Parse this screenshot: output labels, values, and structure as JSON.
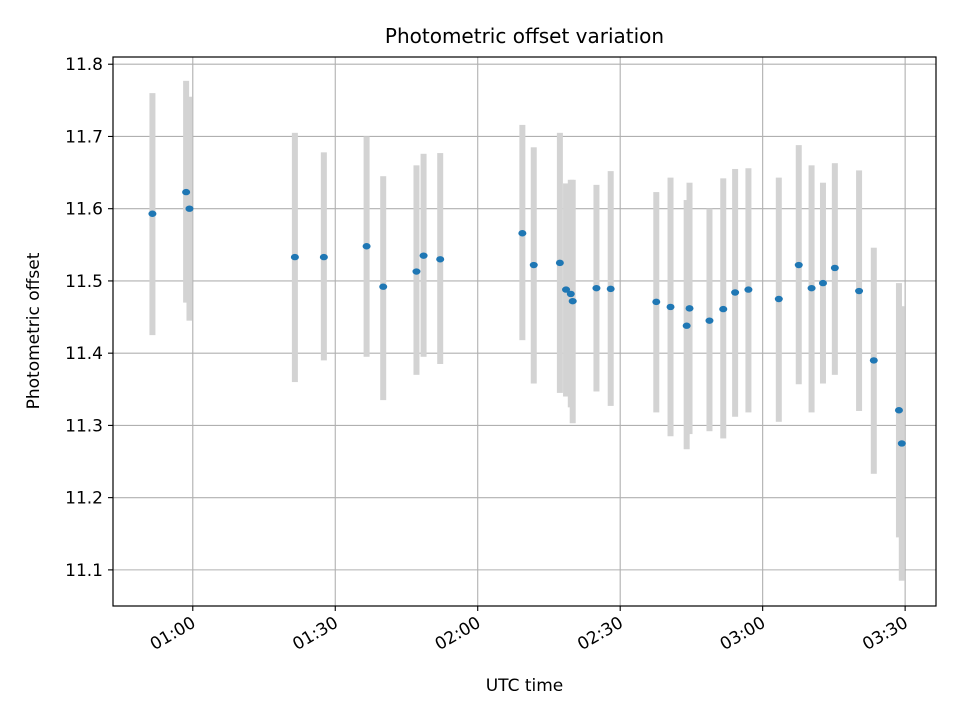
{
  "chart_data": {
    "type": "scatter",
    "title": "Photometric offset variation",
    "xlabel": "UTC time",
    "ylabel": "Photometric offset",
    "x_ticks": [
      "01:00",
      "01:30",
      "02:00",
      "02:30",
      "03:00",
      "03:30"
    ],
    "x_tick_minutes": [
      60,
      90,
      120,
      150,
      180,
      210
    ],
    "xlim_minutes": [
      43.2,
      216.5
    ],
    "ylim": [
      11.05,
      11.81
    ],
    "y_ticks": [
      11.1,
      11.2,
      11.3,
      11.4,
      11.5,
      11.6,
      11.7,
      11.8
    ],
    "grid": true,
    "colors": {
      "points": "#1f77b4",
      "error_bars": "#d3d3d3",
      "grid": "#b0b0b0"
    },
    "x_unit_note": "minutes after 00:00 UTC",
    "series": [
      {
        "points": [
          {
            "x": 51.5,
            "y": 11.593,
            "ylo": 11.425,
            "yhi": 11.76
          },
          {
            "x": 58.6,
            "y": 11.623,
            "ylo": 11.47,
            "yhi": 11.777
          },
          {
            "x": 59.3,
            "y": 11.6,
            "ylo": 11.445,
            "yhi": 11.755
          },
          {
            "x": 81.5,
            "y": 11.533,
            "ylo": 11.36,
            "yhi": 11.705
          },
          {
            "x": 87.6,
            "y": 11.533,
            "ylo": 11.39,
            "yhi": 11.678
          },
          {
            "x": 96.6,
            "y": 11.548,
            "ylo": 11.395,
            "yhi": 11.7
          },
          {
            "x": 100.1,
            "y": 11.492,
            "ylo": 11.335,
            "yhi": 11.645
          },
          {
            "x": 107.1,
            "y": 11.513,
            "ylo": 11.37,
            "yhi": 11.66
          },
          {
            "x": 108.6,
            "y": 11.535,
            "ylo": 11.395,
            "yhi": 11.676
          },
          {
            "x": 112.1,
            "y": 11.53,
            "ylo": 11.385,
            "yhi": 11.677
          },
          {
            "x": 129.4,
            "y": 11.566,
            "ylo": 11.418,
            "yhi": 11.716
          },
          {
            "x": 131.8,
            "y": 11.522,
            "ylo": 11.358,
            "yhi": 11.685
          },
          {
            "x": 137.3,
            "y": 11.525,
            "ylo": 11.345,
            "yhi": 11.705
          },
          {
            "x": 138.6,
            "y": 11.488,
            "ylo": 11.34,
            "yhi": 11.635
          },
          {
            "x": 139.6,
            "y": 11.482,
            "ylo": 11.325,
            "yhi": 11.64
          },
          {
            "x": 140.0,
            "y": 11.472,
            "ylo": 11.303,
            "yhi": 11.64
          },
          {
            "x": 145.0,
            "y": 11.49,
            "ylo": 11.347,
            "yhi": 11.633
          },
          {
            "x": 148.0,
            "y": 11.489,
            "ylo": 11.327,
            "yhi": 11.652
          },
          {
            "x": 157.6,
            "y": 11.471,
            "ylo": 11.318,
            "yhi": 11.623
          },
          {
            "x": 160.6,
            "y": 11.464,
            "ylo": 11.285,
            "yhi": 11.643
          },
          {
            "x": 164.0,
            "y": 11.438,
            "ylo": 11.267,
            "yhi": 11.612
          },
          {
            "x": 164.6,
            "y": 11.462,
            "ylo": 11.288,
            "yhi": 11.636
          },
          {
            "x": 168.8,
            "y": 11.445,
            "ylo": 11.292,
            "yhi": 11.6
          },
          {
            "x": 171.7,
            "y": 11.461,
            "ylo": 11.282,
            "yhi": 11.642
          },
          {
            "x": 174.2,
            "y": 11.484,
            "ylo": 11.312,
            "yhi": 11.655
          },
          {
            "x": 177.0,
            "y": 11.488,
            "ylo": 11.318,
            "yhi": 11.656
          },
          {
            "x": 183.4,
            "y": 11.475,
            "ylo": 11.305,
            "yhi": 11.643
          },
          {
            "x": 187.6,
            "y": 11.522,
            "ylo": 11.357,
            "yhi": 11.688
          },
          {
            "x": 190.3,
            "y": 11.49,
            "ylo": 11.318,
            "yhi": 11.66
          },
          {
            "x": 192.7,
            "y": 11.497,
            "ylo": 11.358,
            "yhi": 11.636
          },
          {
            "x": 195.2,
            "y": 11.518,
            "ylo": 11.37,
            "yhi": 11.663
          },
          {
            "x": 200.3,
            "y": 11.486,
            "ylo": 11.32,
            "yhi": 11.653
          },
          {
            "x": 203.4,
            "y": 11.39,
            "ylo": 11.233,
            "yhi": 11.546
          },
          {
            "x": 208.7,
            "y": 11.321,
            "ylo": 11.145,
            "yhi": 11.497
          },
          {
            "x": 209.3,
            "y": 11.275,
            "ylo": 11.085,
            "yhi": 11.465
          }
        ]
      }
    ]
  }
}
